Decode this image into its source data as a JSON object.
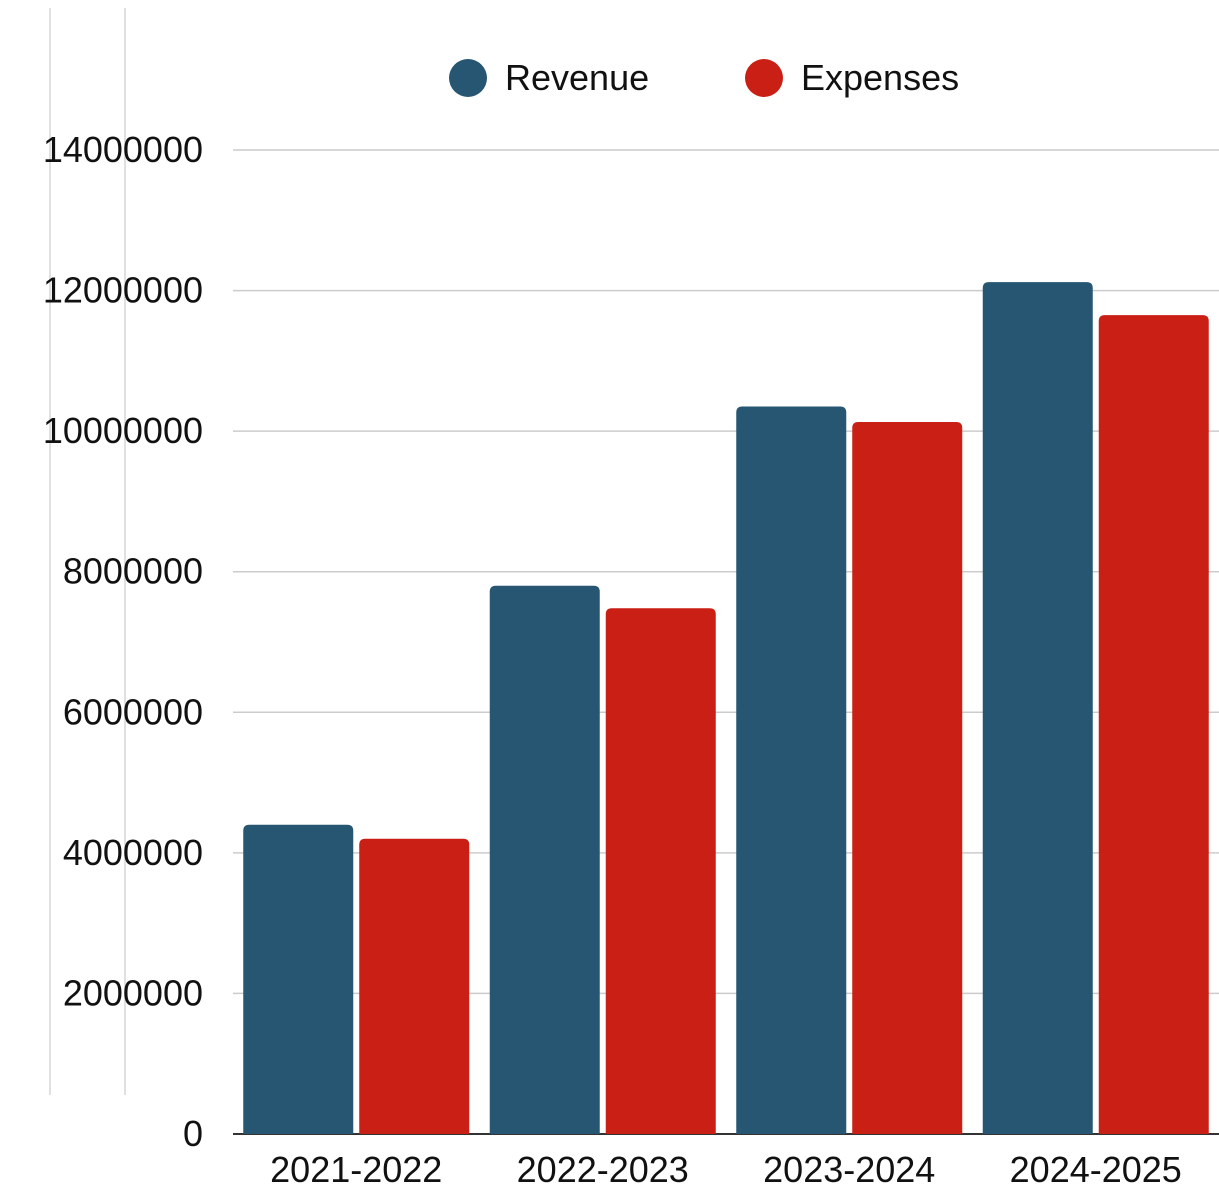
{
  "chart_data": {
    "type": "bar",
    "title": "",
    "xlabel": "",
    "ylabel": "",
    "categories": [
      "2021-2022",
      "2022-2023",
      "2023-2024",
      "2024-2025"
    ],
    "series": [
      {
        "name": "Revenue",
        "color": "#265672",
        "values": [
          4400000,
          7800000,
          10350000,
          12120000
        ]
      },
      {
        "name": "Expenses",
        "color": "#c91f15",
        "values": [
          4200000,
          7480000,
          10130000,
          11650000
        ]
      }
    ],
    "ylim": [
      0,
      14000000
    ],
    "yticks": [
      "0",
      "2000000",
      "4000000",
      "6000000",
      "8000000",
      "10000000",
      "12000000",
      "14000000"
    ],
    "grid": true,
    "legend": "top-center"
  }
}
